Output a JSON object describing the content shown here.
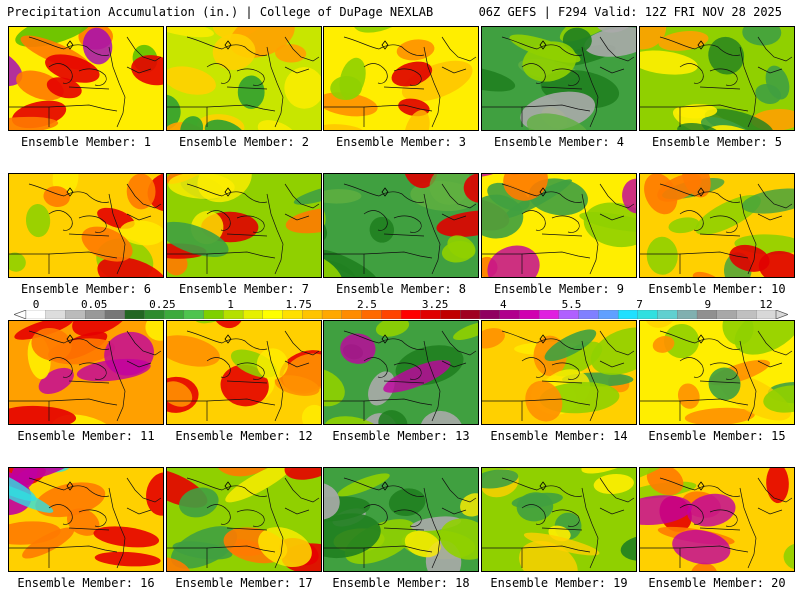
{
  "header": {
    "left_title": "Precipitation Accumulation (in.) | College of DuPage NEXLAB",
    "right_title": "06Z GEFS | F294 Valid: 12Z FRI NOV 28 2025"
  },
  "panels": [
    {
      "label": "Ensemble Member: 1",
      "scheme": [
        "#ffee00",
        "#ff7a00",
        "#e60000",
        "#60c000",
        "#a000c0"
      ]
    },
    {
      "label": "Ensemble Member: 2",
      "scheme": [
        "#c8e600",
        "#ffd000",
        "#30a030",
        "#ffa000",
        "#ffee00"
      ]
    },
    {
      "label": "Ensemble Member: 3",
      "scheme": [
        "#ffee00",
        "#ff9000",
        "#90d000",
        "#e00000",
        "#ffc000"
      ]
    },
    {
      "label": "Ensemble Member: 4",
      "scheme": [
        "#40a040",
        "#208020",
        "#90d000",
        "#aaaaaa",
        "#60b040"
      ]
    },
    {
      "label": "Ensemble Member: 5",
      "scheme": [
        "#90d000",
        "#40a040",
        "#ffee00",
        "#ffa000",
        "#208020"
      ]
    },
    {
      "label": "Ensemble Member: 6",
      "scheme": [
        "#ffd000",
        "#e60000",
        "#ff7a00",
        "#90d000",
        "#ffee00"
      ]
    },
    {
      "label": "Ensemble Member: 7",
      "scheme": [
        "#90d000",
        "#ff7a00",
        "#40a040",
        "#e00000",
        "#ffee00"
      ]
    },
    {
      "label": "Ensemble Member: 8",
      "scheme": [
        "#40a040",
        "#208020",
        "#90d000",
        "#e00000",
        "#60b040"
      ]
    },
    {
      "label": "Ensemble Member: 9",
      "scheme": [
        "#ffee00",
        "#40a040",
        "#ff7a00",
        "#90d000",
        "#c000a0"
      ]
    },
    {
      "label": "Ensemble Member: 10",
      "scheme": [
        "#ffd000",
        "#ff7a00",
        "#90d000",
        "#e00000",
        "#40a040"
      ]
    },
    {
      "label": "Ensemble Member: 11",
      "scheme": [
        "#ffa000",
        "#ff7a00",
        "#e60000",
        "#ffee00",
        "#c000a0"
      ]
    },
    {
      "label": "Ensemble Member: 12",
      "scheme": [
        "#ffd000",
        "#e60000",
        "#ff9000",
        "#90d000",
        "#ffee00"
      ]
    },
    {
      "label": "Ensemble Member: 13",
      "scheme": [
        "#40a040",
        "#208020",
        "#90d000",
        "#aaaaaa",
        "#c000a0"
      ]
    },
    {
      "label": "Ensemble Member: 14",
      "scheme": [
        "#ffd000",
        "#90d000",
        "#ff9000",
        "#40a040",
        "#ffee00"
      ]
    },
    {
      "label": "Ensemble Member: 15",
      "scheme": [
        "#ffee00",
        "#90d000",
        "#ff9000",
        "#40a040",
        "#ffd000"
      ]
    },
    {
      "label": "Ensemble Member: 16",
      "scheme": [
        "#ffd000",
        "#e60000",
        "#ff7a00",
        "#c000a0",
        "#30e0e0"
      ]
    },
    {
      "label": "Ensemble Member: 17",
      "scheme": [
        "#90d000",
        "#e60000",
        "#ff7a00",
        "#40a040",
        "#ffee00"
      ]
    },
    {
      "label": "Ensemble Member: 18",
      "scheme": [
        "#40a040",
        "#90d000",
        "#aaaaaa",
        "#208020",
        "#ffee00"
      ]
    },
    {
      "label": "Ensemble Member: 19",
      "scheme": [
        "#90d000",
        "#40a040",
        "#ffee00",
        "#208020",
        "#ffd000"
      ]
    },
    {
      "label": "Ensemble Member: 20",
      "scheme": [
        "#ffd000",
        "#ff7a00",
        "#90d000",
        "#e60000",
        "#c000a0"
      ]
    }
  ],
  "colorbar": {
    "labels": [
      "0",
      "0.05",
      "0.25",
      "1",
      "1.75",
      "2.5",
      "3.25",
      "4",
      "5.5",
      "7",
      "9",
      "12"
    ],
    "colors": [
      "#ffffff",
      "#dddddd",
      "#bbbbbb",
      "#999999",
      "#777777",
      "#226622",
      "#2e8b2e",
      "#3caa3c",
      "#4fc44f",
      "#7fd000",
      "#b5e000",
      "#e6f000",
      "#ffff00",
      "#ffe000",
      "#ffc400",
      "#ffa800",
      "#ff8c00",
      "#ff6a00",
      "#ff4400",
      "#ff0000",
      "#e00000",
      "#c00000",
      "#a00020",
      "#900060",
      "#b0008c",
      "#d000b0",
      "#e020e0",
      "#b060ff",
      "#8080ff",
      "#60a0ff",
      "#20e0ff",
      "#30e0e0",
      "#60d0d0",
      "#80b0b0",
      "#909090",
      "#a8a8a8",
      "#c0c0c0",
      "#d8d8d8"
    ]
  }
}
